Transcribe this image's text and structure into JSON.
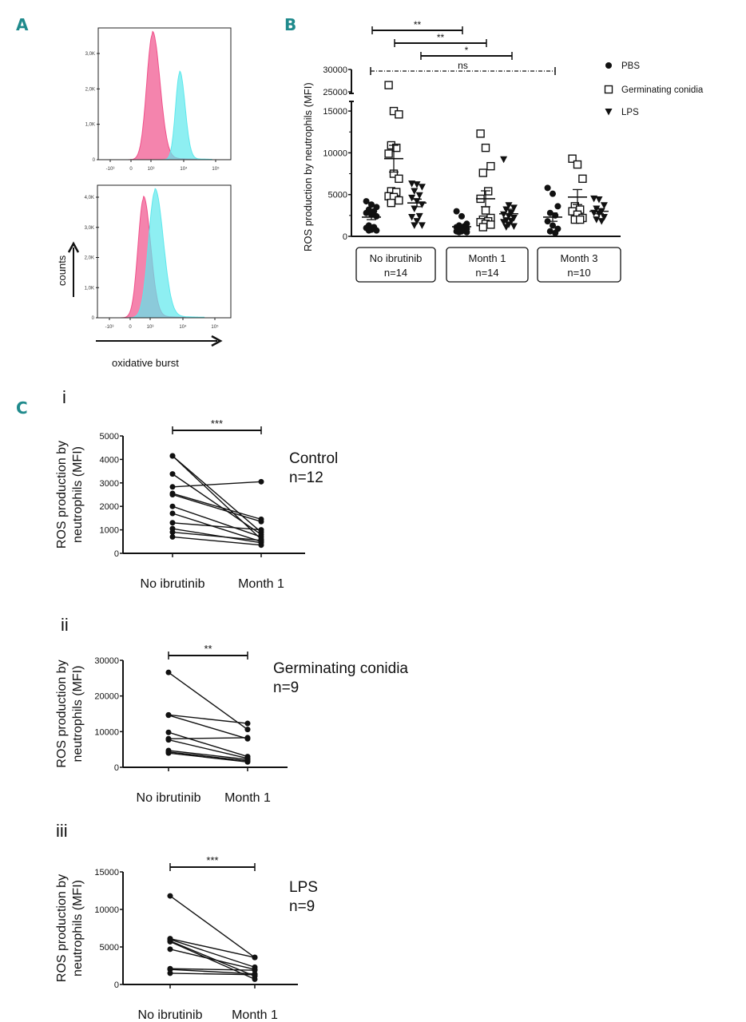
{
  "panel_labels": {
    "a": "A",
    "b": "B",
    "c": "C",
    "ci": "i",
    "cii": "ii",
    "ciii": "iii"
  },
  "colors": {
    "panel_letter": "#1f8a8c",
    "pink": "#f0508a",
    "cyan": "#5ee8ec"
  },
  "chart_data": [
    {
      "id": "A-top",
      "type": "area",
      "y_ticks": [
        "3,0K",
        "2,0K",
        "1,0K",
        "0"
      ],
      "y_tick_values": [
        3000,
        2000,
        1000,
        0
      ],
      "x_ticks": [
        "-10³",
        "0",
        "10³",
        "10⁴",
        "10⁵"
      ],
      "series": [
        {
          "color": "#f0508a",
          "peak_log10": 3.05,
          "peak_count": 3550,
          "width_log10": 0.18
        },
        {
          "color": "#5ee8ec",
          "peak_log10": 3.88,
          "peak_count": 2450,
          "width_log10": 0.13
        }
      ]
    },
    {
      "id": "A-bottom",
      "type": "area",
      "y_ticks": [
        "4,0K",
        "3,0K",
        "2,0K",
        "1,0K",
        "0"
      ],
      "y_tick_values": [
        4000,
        3000,
        2000,
        1000,
        0
      ],
      "x_ticks": [
        "-10³",
        "0",
        "10³",
        "10⁴",
        "10⁵"
      ],
      "xlabel": "oxidative burst",
      "ylabel": "counts",
      "series": [
        {
          "color": "#f0508a",
          "peak_log10": 2.8,
          "peak_count": 3950,
          "width_log10": 0.17
        },
        {
          "color": "#5ee8ec",
          "peak_log10": 3.15,
          "peak_count": 4200,
          "width_log10": 0.2
        }
      ]
    },
    {
      "id": "B",
      "type": "scatter",
      "ylabel": "ROS  production  by neutrophils (MFI)",
      "y_ticks_lower": [
        0,
        5000,
        10000,
        15000
      ],
      "y_ticks_upper": [
        25000,
        30000
      ],
      "y_break": [
        16000,
        25000
      ],
      "groups": [
        {
          "label": "No ibrutinib",
          "n": "n=14"
        },
        {
          "label": "Month 1",
          "n": "n=14"
        },
        {
          "label": "Month 3",
          "n": "n=10"
        }
      ],
      "legend": [
        {
          "name": "PBS",
          "marker": "circle"
        },
        {
          "name": "Germinating conidia",
          "marker": "square-open"
        },
        {
          "name": "LPS",
          "marker": "triangle-down"
        }
      ],
      "legend_position": "top-right",
      "significance": [
        {
          "label": "**",
          "from": "No ibrutinib PBS",
          "to": "Month 1 PBS",
          "style": "solid"
        },
        {
          "label": "**",
          "from": "No ibrutinib Germinating conidia",
          "to": "Month 1 Germinating conidia",
          "style": "solid"
        },
        {
          "label": "*",
          "from": "No ibrutinib LPS",
          "to": "Month 1 LPS",
          "style": "solid"
        },
        {
          "label": "ns",
          "from": "No ibrutinib PBS",
          "to": "Month 3 PBS",
          "style": "dashed"
        }
      ],
      "series": [
        {
          "group": 0,
          "name": "PBS",
          "mean": 2300,
          "sem": 300,
          "values": [
            4200,
            3800,
            3500,
            3200,
            3000,
            2800,
            2600,
            2400,
            1300,
            1100,
            1000,
            800,
            700,
            700
          ]
        },
        {
          "group": 0,
          "name": "Germinating conidia",
          "mean": 9300,
          "sem": 1600,
          "values": [
            26500,
            15000,
            14600,
            10900,
            10600,
            9900,
            7500,
            6900,
            5400,
            5300,
            4800,
            4700,
            4300,
            4000
          ]
        },
        {
          "group": 0,
          "name": "LPS",
          "mean": 4000,
          "sem": 450,
          "values": [
            6300,
            6200,
            5900,
            5400,
            4900,
            4600,
            4200,
            3800,
            3300,
            2400,
            2300,
            1800,
            1300,
            1300
          ]
        },
        {
          "group": 1,
          "name": "PBS",
          "mean": 1150,
          "sem": 200,
          "values": [
            3000,
            2400,
            1500,
            1300,
            1200,
            1100,
            1000,
            900,
            800,
            700,
            600,
            600,
            500,
            500
          ]
        },
        {
          "group": 1,
          "name": "Germinating conidia",
          "mean": 4500,
          "sem": 950,
          "values": [
            12300,
            10600,
            8400,
            7600,
            5400,
            4500,
            3100,
            2200,
            2000,
            1800,
            1700,
            1500,
            1400,
            1100
          ]
        },
        {
          "group": 1,
          "name": "LPS",
          "mean": 2700,
          "sem": 550,
          "values": [
            9200,
            3700,
            3400,
            3200,
            2800,
            2600,
            2400,
            2200,
            1900,
            1800,
            1700,
            1400,
            1200,
            1100
          ]
        },
        {
          "group": 2,
          "name": "PBS",
          "mean": 2300,
          "sem": 500,
          "values": [
            5800,
            5100,
            3600,
            2800,
            2500,
            1800,
            1300,
            900,
            600,
            400
          ]
        },
        {
          "group": 2,
          "name": "Germinating conidia",
          "mean": 4700,
          "sem": 900,
          "values": [
            9300,
            8600,
            6900,
            3600,
            3200,
            3000,
            2600,
            2200,
            2000,
            2000
          ]
        },
        {
          "group": 2,
          "name": "LPS",
          "mean": 3000,
          "sem": 300,
          "values": [
            4500,
            4400,
            3700,
            3300,
            3000,
            2800,
            2700,
            2300,
            2000,
            1800
          ]
        }
      ]
    },
    {
      "id": "C-i",
      "type": "line",
      "ylabel": [
        "ROS production by",
        "neutrophils (MFI)"
      ],
      "categories": [
        "No ibrutinib",
        "Month 1"
      ],
      "ylim": [
        0,
        5000
      ],
      "y_ticks": [
        0,
        1000,
        2000,
        3000,
        4000,
        5000
      ],
      "significance": "***",
      "title": "Control",
      "n": "n=12",
      "pairs": [
        [
          4150,
          900
        ],
        [
          4150,
          600
        ],
        [
          3380,
          800
        ],
        [
          2830,
          3050
        ],
        [
          2550,
          1450
        ],
        [
          2500,
          1350
        ],
        [
          2000,
          700
        ],
        [
          1700,
          500
        ],
        [
          1300,
          1000
        ],
        [
          1050,
          450
        ],
        [
          900,
          550
        ],
        [
          700,
          350
        ]
      ]
    },
    {
      "id": "C-ii",
      "type": "line",
      "ylabel": [
        "ROS production by",
        "neutrophils (MFI)"
      ],
      "categories": [
        "No ibrutinib",
        "Month 1"
      ],
      "ylim": [
        0,
        30000
      ],
      "y_ticks": [
        0,
        10000,
        20000,
        30000
      ],
      "significance": "**",
      "title": "Germinating conidia",
      "n": "n=9",
      "pairs": [
        [
          26600,
          10600
        ],
        [
          14700,
          12300
        ],
        [
          14600,
          8000
        ],
        [
          9800,
          3000
        ],
        [
          8000,
          8300
        ],
        [
          7700,
          2500
        ],
        [
          4700,
          2200
        ],
        [
          4300,
          1800
        ],
        [
          4000,
          1500
        ]
      ]
    },
    {
      "id": "C-iii",
      "type": "line",
      "ylabel": [
        "ROS production by",
        "neutrophils (MFI)"
      ],
      "categories": [
        "No ibrutinib",
        "Month 1"
      ],
      "ylim": [
        0,
        15000
      ],
      "y_ticks": [
        0,
        5000,
        10000,
        15000
      ],
      "significance": "***",
      "title": "LPS",
      "n": "n=9",
      "pairs": [
        [
          11800,
          3600
        ],
        [
          6100,
          3600
        ],
        [
          6000,
          2300
        ],
        [
          5800,
          1100
        ],
        [
          5700,
          700
        ],
        [
          4700,
          2000
        ],
        [
          2100,
          1900
        ],
        [
          2000,
          1400
        ],
        [
          1500,
          1300
        ]
      ]
    }
  ]
}
